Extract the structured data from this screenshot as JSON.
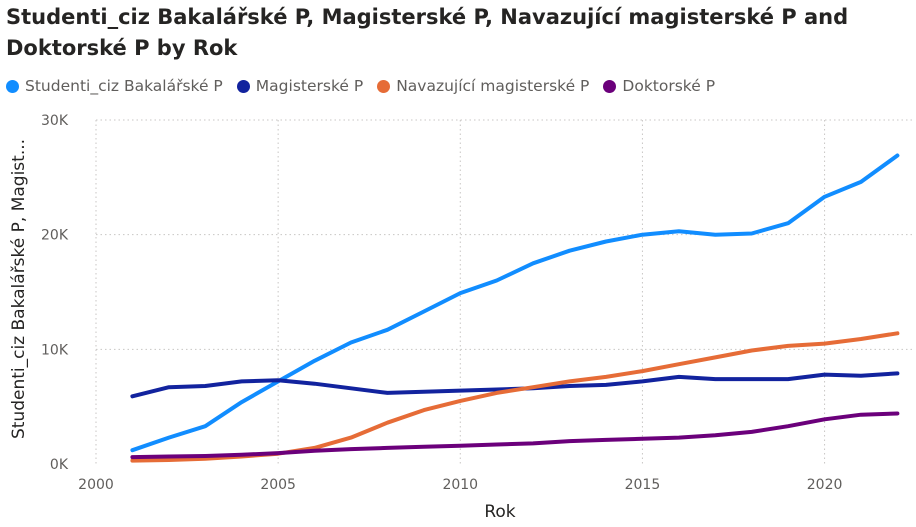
{
  "chart_data": {
    "type": "line",
    "title": "Studenti_ciz Bakalářské P, Magisterské P, Navazující magisterské P and Doktorské P by Rok",
    "xlabel": "Rok",
    "ylabel": "Studenti_ciz Bakalářské P, Magist...",
    "xlim": [
      2000,
      2022.4
    ],
    "ylim": [
      0,
      30000
    ],
    "x_ticks": [
      2000,
      2005,
      2010,
      2015,
      2020
    ],
    "y_ticks": [
      0,
      10000,
      20000,
      30000
    ],
    "y_tick_labels": [
      "0K",
      "10K",
      "20K",
      "30K"
    ],
    "grid": true,
    "legend_position": "top-left",
    "x": [
      2001,
      2002,
      2003,
      2004,
      2005,
      2006,
      2007,
      2008,
      2009,
      2010,
      2011,
      2012,
      2013,
      2014,
      2015,
      2016,
      2017,
      2018,
      2019,
      2020,
      2021,
      2022
    ],
    "series": [
      {
        "name": "Studenti_ciz Bakalářské P",
        "color": "#118dff",
        "values": [
          1200,
          2300,
          3300,
          5400,
          7200,
          9000,
          10600,
          11700,
          13300,
          14900,
          16000,
          17500,
          18600,
          19400,
          20000,
          20300,
          20000,
          20100,
          21000,
          23300,
          24600,
          26900
        ]
      },
      {
        "name": "Magisterské P",
        "color": "#12239e",
        "values": [
          5900,
          6700,
          6800,
          7200,
          7300,
          7000,
          6600,
          6200,
          6300,
          6400,
          6500,
          6600,
          6800,
          6900,
          7200,
          7600,
          7400,
          7400,
          7400,
          7800,
          7700,
          7900
        ]
      },
      {
        "name": "Navazující magisterské P",
        "color": "#e66c37",
        "values": [
          300,
          350,
          450,
          650,
          900,
          1400,
          2300,
          3600,
          4700,
          5500,
          6200,
          6700,
          7200,
          7600,
          8100,
          8700,
          9300,
          9900,
          10300,
          10500,
          10900,
          11400
        ]
      },
      {
        "name": "Doktorské P",
        "color": "#6b007b",
        "values": [
          600,
          650,
          700,
          800,
          950,
          1150,
          1300,
          1400,
          1500,
          1600,
          1700,
          1800,
          2000,
          2100,
          2200,
          2300,
          2500,
          2800,
          3300,
          3900,
          4300,
          4400
        ]
      }
    ]
  }
}
